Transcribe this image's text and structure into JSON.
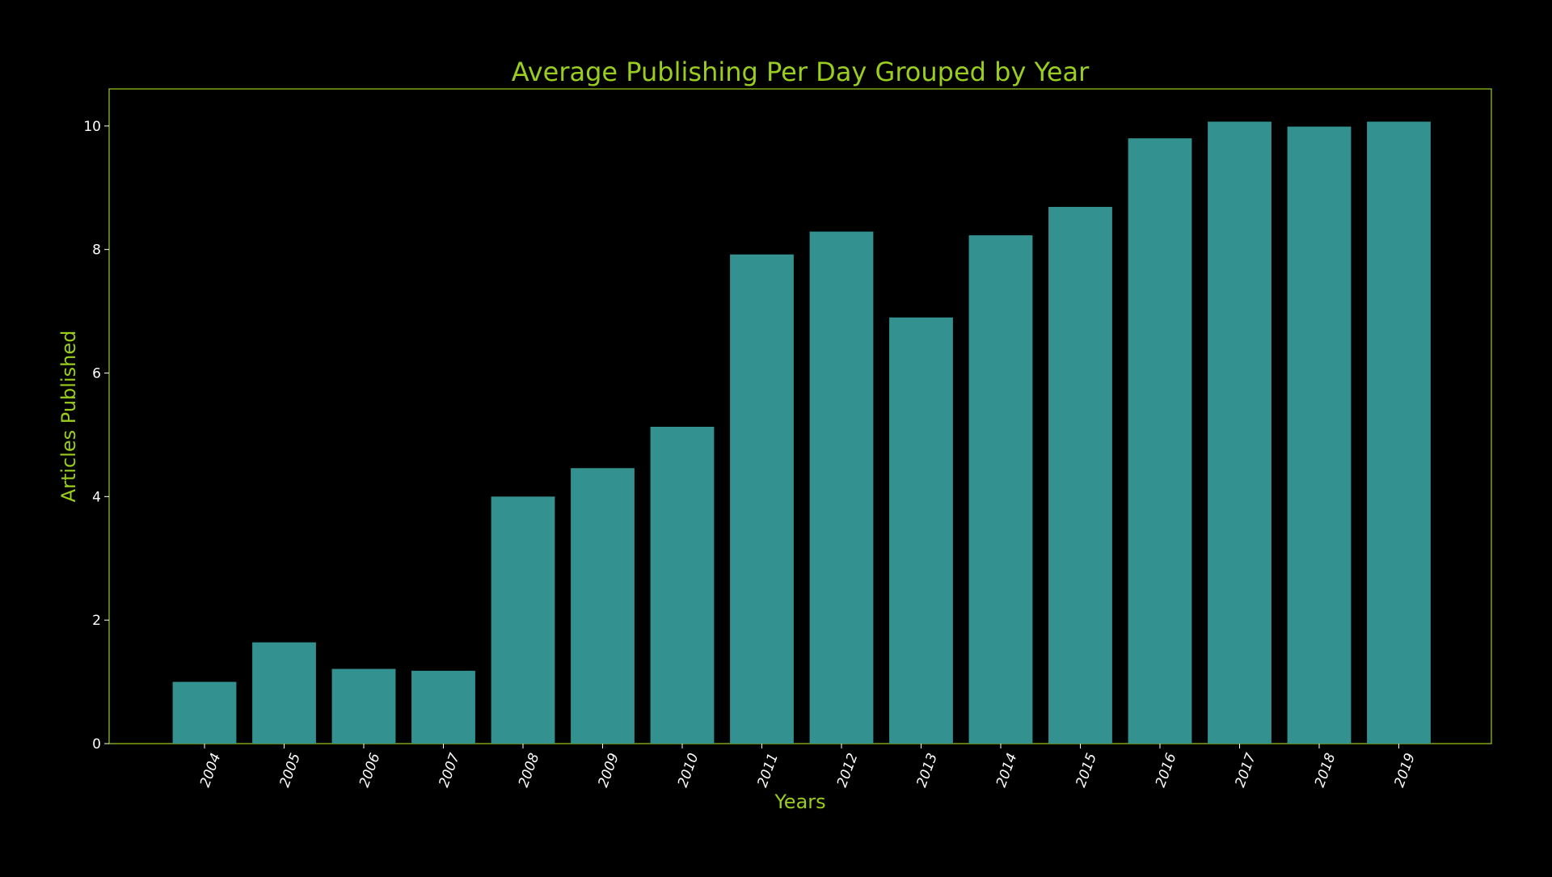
{
  "chart_data": {
    "type": "bar",
    "title": "Average Publishing Per Day Grouped by Year",
    "xlabel": "Years",
    "ylabel": "Articles Published",
    "categories": [
      "2004",
      "2005",
      "2006",
      "2007",
      "2008",
      "2009",
      "2010",
      "2011",
      "2012",
      "2013",
      "2014",
      "2015",
      "2016",
      "2017",
      "2018",
      "2019"
    ],
    "values": [
      1.0,
      1.64,
      1.21,
      1.18,
      4.0,
      4.46,
      5.13,
      7.92,
      8.29,
      6.9,
      8.23,
      8.69,
      9.8,
      10.07,
      9.99,
      10.07
    ],
    "ylim": [
      0,
      10.6
    ],
    "yticks": [
      "0",
      "2",
      "4",
      "6",
      "8",
      "10"
    ],
    "grid": false,
    "legend": "none",
    "colors": {
      "background": "#000000",
      "bar": "#339190",
      "accent": "#9acd1e",
      "tick_text": "#ffffff"
    }
  }
}
